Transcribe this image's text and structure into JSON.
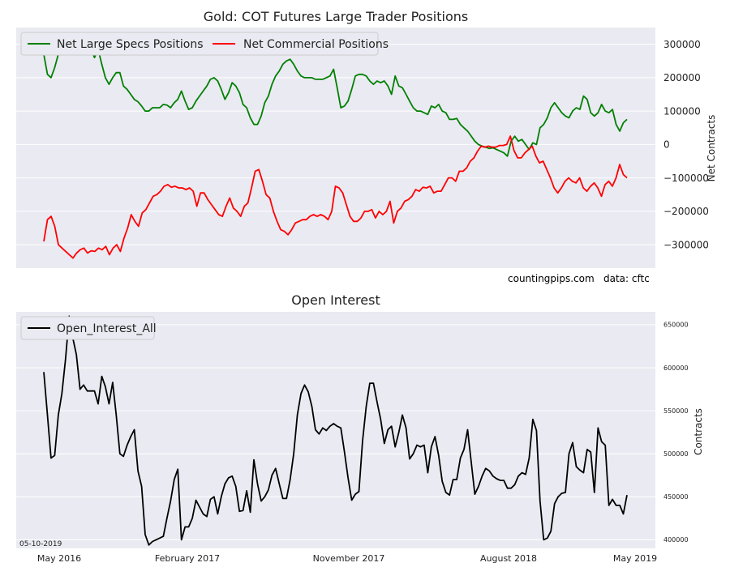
{
  "chart_data": [
    {
      "type": "line",
      "title": "Gold: COT Futures Large Trader Positions",
      "ylabel": "Net Contracts",
      "ylim": [
        -370000,
        350000
      ],
      "yticks": [
        300000,
        200000,
        100000,
        0,
        -100000,
        -200000,
        -300000
      ],
      "yaxis_side": "right",
      "grid": true,
      "legend": "top-left",
      "annotations": [
        "countingpips.com",
        "data: cftc"
      ],
      "series": [
        {
          "name": "Net Large Specs Positions",
          "color": "#008000",
          "values": [
            270000,
            210000,
            200000,
            230000,
            270000,
            290000,
            305000,
            300000,
            290000,
            300000,
            295000,
            305000,
            300000,
            285000,
            260000,
            285000,
            240000,
            200000,
            180000,
            200000,
            215000,
            215000,
            175000,
            165000,
            150000,
            135000,
            128000,
            115000,
            100000,
            100000,
            110000,
            110000,
            110000,
            120000,
            118000,
            110000,
            125000,
            135000,
            160000,
            130000,
            105000,
            110000,
            130000,
            145000,
            160000,
            175000,
            195000,
            200000,
            190000,
            165000,
            135000,
            155000,
            185000,
            175000,
            155000,
            120000,
            110000,
            80000,
            60000,
            60000,
            85000,
            125000,
            145000,
            180000,
            205000,
            220000,
            240000,
            250000,
            255000,
            240000,
            220000,
            205000,
            200000,
            200000,
            200000,
            195000,
            195000,
            195000,
            200000,
            205000,
            225000,
            170000,
            110000,
            115000,
            130000,
            165000,
            205000,
            210000,
            210000,
            205000,
            190000,
            180000,
            190000,
            185000,
            190000,
            175000,
            150000,
            205000,
            175000,
            170000,
            150000,
            130000,
            110000,
            100000,
            100000,
            95000,
            90000,
            115000,
            110000,
            120000,
            100000,
            95000,
            75000,
            75000,
            78000,
            60000,
            50000,
            40000,
            25000,
            10000,
            0,
            -5000,
            -8000,
            -12000,
            -10000,
            -15000,
            -20000,
            -25000,
            -35000,
            10000,
            25000,
            10000,
            15000,
            0,
            -15000,
            5000,
            0,
            50000,
            60000,
            80000,
            110000,
            125000,
            110000,
            95000,
            85000,
            80000,
            100000,
            110000,
            105000,
            145000,
            135000,
            95000,
            85000,
            95000,
            120000,
            100000,
            95000,
            105000,
            60000,
            40000,
            65000,
            75000
          ],
          "x_start_label": "May 2016",
          "x_end_label": "May 2019"
        },
        {
          "name": "Net Commercial Positions",
          "color": "#ff0000",
          "values": [
            -290000,
            -225000,
            -215000,
            -245000,
            -300000,
            -310000,
            -320000,
            -330000,
            -340000,
            -325000,
            -315000,
            -310000,
            -325000,
            -318000,
            -320000,
            -310000,
            -315000,
            -305000,
            -330000,
            -310000,
            -300000,
            -320000,
            -280000,
            -250000,
            -210000,
            -230000,
            -245000,
            -205000,
            -195000,
            -175000,
            -155000,
            -150000,
            -140000,
            -125000,
            -120000,
            -128000,
            -125000,
            -130000,
            -130000,
            -135000,
            -130000,
            -140000,
            -185000,
            -145000,
            -145000,
            -165000,
            -180000,
            -195000,
            -210000,
            -215000,
            -185000,
            -160000,
            -190000,
            -200000,
            -215000,
            -185000,
            -175000,
            -130000,
            -80000,
            -75000,
            -110000,
            -150000,
            -160000,
            -200000,
            -230000,
            -255000,
            -260000,
            -270000,
            -255000,
            -235000,
            -230000,
            -225000,
            -225000,
            -215000,
            -210000,
            -215000,
            -210000,
            -215000,
            -225000,
            -200000,
            -125000,
            -130000,
            -145000,
            -180000,
            -215000,
            -230000,
            -230000,
            -220000,
            -200000,
            -200000,
            -195000,
            -220000,
            -200000,
            -210000,
            -200000,
            -170000,
            -235000,
            -200000,
            -190000,
            -170000,
            -165000,
            -155000,
            -135000,
            -140000,
            -128000,
            -130000,
            -125000,
            -145000,
            -140000,
            -140000,
            -120000,
            -100000,
            -100000,
            -110000,
            -80000,
            -80000,
            -70000,
            -50000,
            -40000,
            -20000,
            -5000,
            -8000,
            -5000,
            -8000,
            -8000,
            -3000,
            -3000,
            0,
            25000,
            -18000,
            -40000,
            -40000,
            -25000,
            -15000,
            -5000,
            -35000,
            -55000,
            -50000,
            -75000,
            -100000,
            -130000,
            -145000,
            -130000,
            -110000,
            -100000,
            -110000,
            -115000,
            -100000,
            -130000,
            -140000,
            -125000,
            -115000,
            -130000,
            -155000,
            -120000,
            -110000,
            -125000,
            -100000,
            -60000,
            -90000,
            -100000
          ]
        }
      ]
    },
    {
      "type": "line",
      "title": "Open Interest",
      "ylabel": "Contracts",
      "ylim": [
        390000,
        665000
      ],
      "yticks": [
        650000,
        600000,
        550000,
        500000,
        450000,
        400000
      ],
      "yaxis_side": "right",
      "grid": true,
      "legend": "top-left",
      "x_tick_labels": [
        "May 2016",
        "February 2017",
        "November 2017",
        "August 2018",
        "May 2019"
      ],
      "date_stamp": "05-10-2019",
      "series": [
        {
          "name": "Open_Interest_All",
          "color": "#000000",
          "values": [
            595000,
            545000,
            495000,
            498000,
            545000,
            570000,
            610000,
            660000,
            635000,
            615000,
            575000,
            580000,
            573000,
            573000,
            573000,
            558000,
            590000,
            578000,
            558000,
            583000,
            545000,
            500000,
            497000,
            510000,
            520000,
            528000,
            480000,
            462000,
            406000,
            394000,
            398000,
            400000,
            402000,
            404000,
            425000,
            445000,
            470000,
            482000,
            400000,
            415000,
            415000,
            425000,
            446000,
            438000,
            430000,
            427000,
            447000,
            450000,
            430000,
            450000,
            465000,
            472000,
            474000,
            462000,
            433000,
            434000,
            457000,
            432000,
            493000,
            465000,
            445000,
            450000,
            458000,
            475000,
            483000,
            465000,
            448000,
            448000,
            470000,
            500000,
            545000,
            570000,
            580000,
            572000,
            555000,
            528000,
            523000,
            530000,
            527000,
            532000,
            535000,
            532000,
            530000,
            502000,
            472000,
            446000,
            453000,
            456000,
            515000,
            555000,
            582000,
            582000,
            560000,
            540000,
            512000,
            528000,
            532000,
            508000,
            525000,
            545000,
            530000,
            494000,
            500000,
            510000,
            508000,
            510000,
            478000,
            508000,
            520000,
            498000,
            468000,
            455000,
            452000,
            470000,
            470000,
            495000,
            505000,
            528000,
            490000,
            453000,
            462000,
            474000,
            483000,
            480000,
            474000,
            471000,
            469000,
            469000,
            460000,
            460000,
            464000,
            474000,
            478000,
            476000,
            495000,
            540000,
            527000,
            445000,
            400000,
            402000,
            410000,
            442000,
            450000,
            454000,
            455000,
            500000,
            513000,
            485000,
            481000,
            478000,
            505000,
            502000,
            455000,
            530000,
            514000,
            510000,
            440000,
            447000,
            440000,
            440000,
            430000,
            452000
          ]
        }
      ]
    }
  ]
}
